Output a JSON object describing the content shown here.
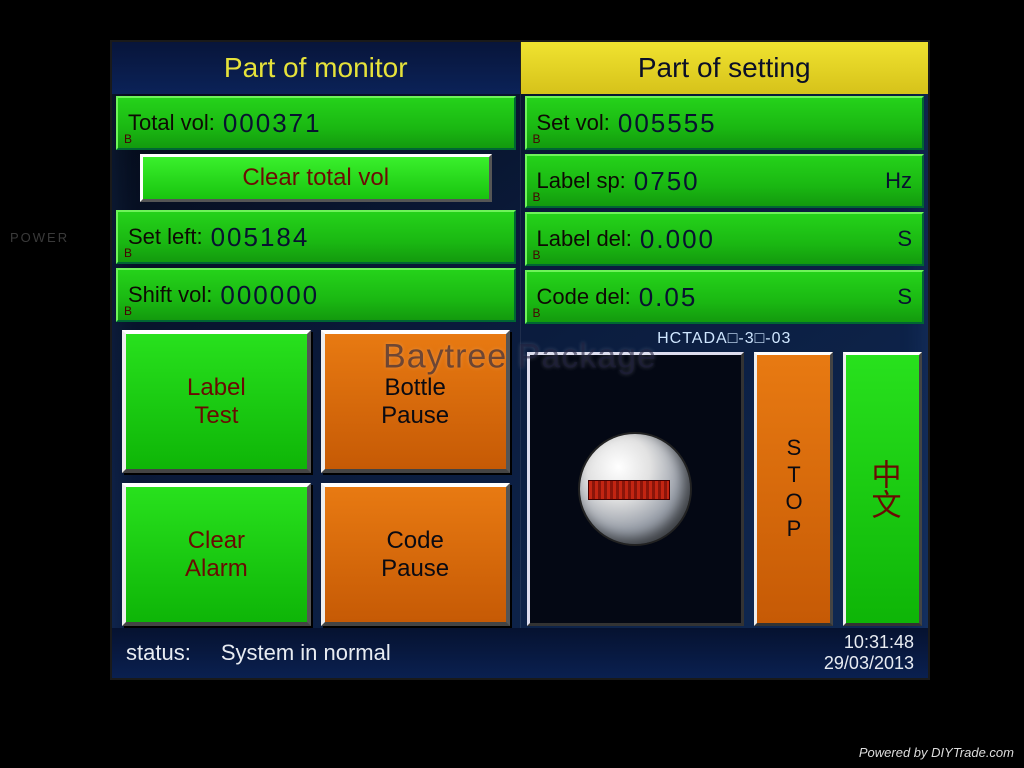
{
  "header": {
    "monitor": "Part of monitor",
    "setting": "Part of setting"
  },
  "monitor": {
    "total_vol": {
      "label": "Total vol:",
      "value": "000371"
    },
    "clear_total_label": "Clear total vol",
    "set_left": {
      "label": "Set left:",
      "value": "005184"
    },
    "shift_vol": {
      "label": "Shift vol:",
      "value": "000000"
    },
    "buttons": {
      "label_test": "Label\nTest",
      "bottle_pause": "Bottle\nPause",
      "clear_alarm": "Clear\nAlarm",
      "code_pause": "Code\nPause"
    }
  },
  "setting": {
    "set_vol": {
      "label": "Set vol:",
      "value": "005555",
      "unit": ""
    },
    "label_sp": {
      "label": "Label sp:",
      "value": "0750",
      "unit": "Hz"
    },
    "label_del": {
      "label": "Label del:",
      "value": "0.000",
      "unit": "S"
    },
    "code_del": {
      "label": "Code del:",
      "value": "0.05",
      "unit": "S"
    },
    "model": "HCTADA□-3□-03",
    "stop": "STOP",
    "lang": "中文"
  },
  "status": {
    "label": "status:",
    "text": "System in normal",
    "time": "10:31:48",
    "date": "29/03/2013"
  },
  "watermark": "Baytree Package",
  "chrome": {
    "power": "POWER",
    "credit": "Powered by DIYTrade.com"
  },
  "colors": {
    "green": "#1ec913",
    "orange": "#d96a0a",
    "yellow": "#e7da22",
    "screen_bg": "#0b1e48",
    "text_dark": "#6a0a03"
  }
}
